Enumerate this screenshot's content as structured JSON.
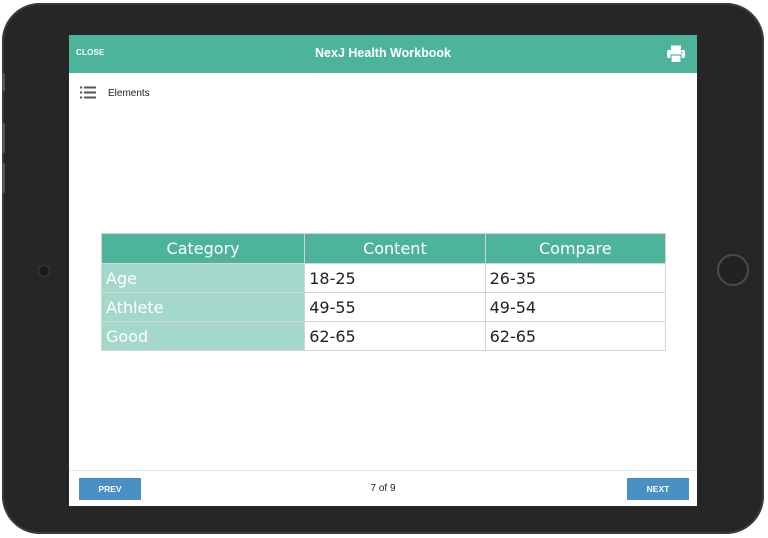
{
  "header": {
    "close_label": "CLOSE",
    "title": "NexJ Health Workbook",
    "print_icon": "printer-icon"
  },
  "subheader": {
    "menu_icon": "list-icon",
    "elements_label": "Elements"
  },
  "table": {
    "columns": [
      "Category",
      "Content",
      "Compare"
    ],
    "rows": [
      {
        "category": "Age",
        "content": "18-25",
        "compare": "26-35"
      },
      {
        "category": "Athlete",
        "content": "49-55",
        "compare": "49-54"
      },
      {
        "category": "Good",
        "content": "62-65",
        "compare": "62-65"
      }
    ]
  },
  "footer": {
    "prev_label": "PREV",
    "page_indicator": "7 of 9",
    "next_label": "NEXT"
  },
  "colors": {
    "header_bg": "#4db39a",
    "category_cell_bg": "#a3d8cb",
    "nav_button_bg": "#4a90c4",
    "tablet_frame": "#262626"
  }
}
